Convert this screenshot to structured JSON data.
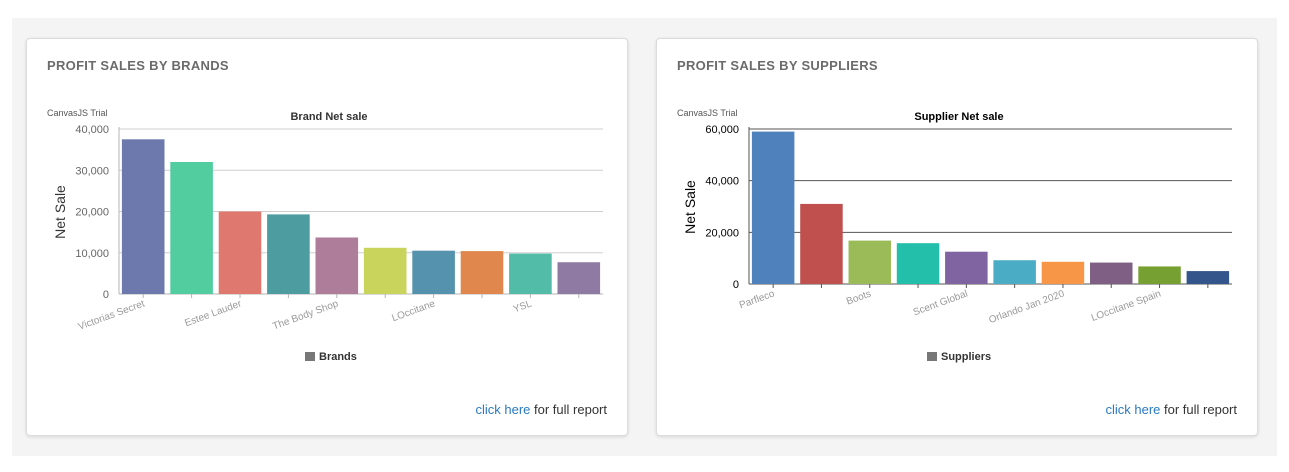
{
  "colors": {
    "brand_palette": [
      "#6d78ad",
      "#51cda0",
      "#df7970",
      "#4c9ca0",
      "#ae7d99",
      "#c9d45c",
      "#5592ad",
      "#df874d",
      "#52bca8",
      "#8e7aa3"
    ],
    "supplier_palette": [
      "#4f81bc",
      "#c0504e",
      "#9bbb58",
      "#23bfaa",
      "#8064a1",
      "#4aacc5",
      "#f79647",
      "#7f6084",
      "#77a033",
      "#33558b"
    ],
    "link": "#2a7ac0"
  },
  "brands_card": {
    "title": "PROFIT SALES BY BRANDS",
    "trial_text": "CanvasJS Trial",
    "report_link": "click here",
    "report_suffix": " for full report"
  },
  "suppliers_card": {
    "title": "PROFIT SALES BY SUPPLIERS",
    "trial_text": "CanvasJS Trial",
    "report_link": "click here",
    "report_suffix": " for full report"
  },
  "chart_data": [
    {
      "type": "bar",
      "title": "Brand Net sale",
      "xlabel": "",
      "ylabel": "Net Sale",
      "ylim": [
        0,
        40000
      ],
      "yticks": [
        "0",
        "10,000",
        "20,000",
        "30,000",
        "40,000"
      ],
      "grid": true,
      "legend": {
        "position": "bottom",
        "label": "Brands"
      },
      "categories": [
        "Victorias Secret",
        "",
        "Estee Lauder",
        "",
        "The Body Shop",
        "",
        "LOccitane",
        "",
        "YSL",
        ""
      ],
      "values": [
        37500,
        32000,
        20000,
        19300,
        13700,
        11200,
        10500,
        10400,
        9800,
        7700
      ]
    },
    {
      "type": "bar",
      "title": "Supplier Net sale",
      "xlabel": "",
      "ylabel": "Net Sale",
      "ylim": [
        0,
        60000
      ],
      "yticks": [
        "0",
        "20,000",
        "40,000",
        "60,000"
      ],
      "grid": true,
      "legend": {
        "position": "bottom",
        "label": "Suppliers"
      },
      "categories": [
        "Parfleco",
        "",
        "Boots",
        "",
        "Scent Global",
        "",
        "Orlando Jan 2020",
        "",
        "LOccitane Spain",
        ""
      ],
      "values": [
        59000,
        31000,
        16800,
        15800,
        12500,
        9200,
        8600,
        8300,
        6800,
        5000
      ]
    }
  ]
}
